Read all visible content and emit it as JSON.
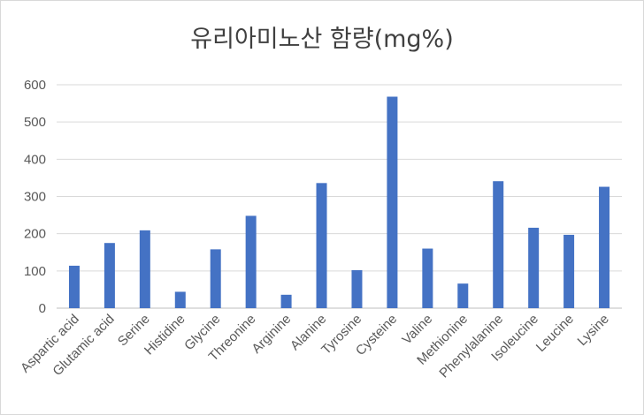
{
  "chart_data": {
    "type": "bar",
    "title": "유리아미노산 함량(mg%)",
    "categories": [
      "Aspartic acid",
      "Glutamic acid",
      "Serine",
      "Histidine",
      "Glycine",
      "Threonine",
      "Arginine",
      "Alanine",
      "Tyrosine",
      "Cysteine",
      "Valine",
      "Methionine",
      "Phenylalanine",
      "Isoleucine",
      "Leucine",
      "Lysine"
    ],
    "values": [
      114,
      175,
      209,
      44,
      158,
      248,
      36,
      336,
      102,
      568,
      160,
      66,
      341,
      216,
      197,
      326
    ],
    "ylim": [
      0,
      600
    ],
    "yticks": [
      0,
      100,
      200,
      300,
      400,
      500,
      600
    ],
    "grid": true,
    "legend": "none",
    "colors": {
      "bar": "#4472C4",
      "grid": "#d9d9d9",
      "axis": "#bfbfbf"
    }
  }
}
